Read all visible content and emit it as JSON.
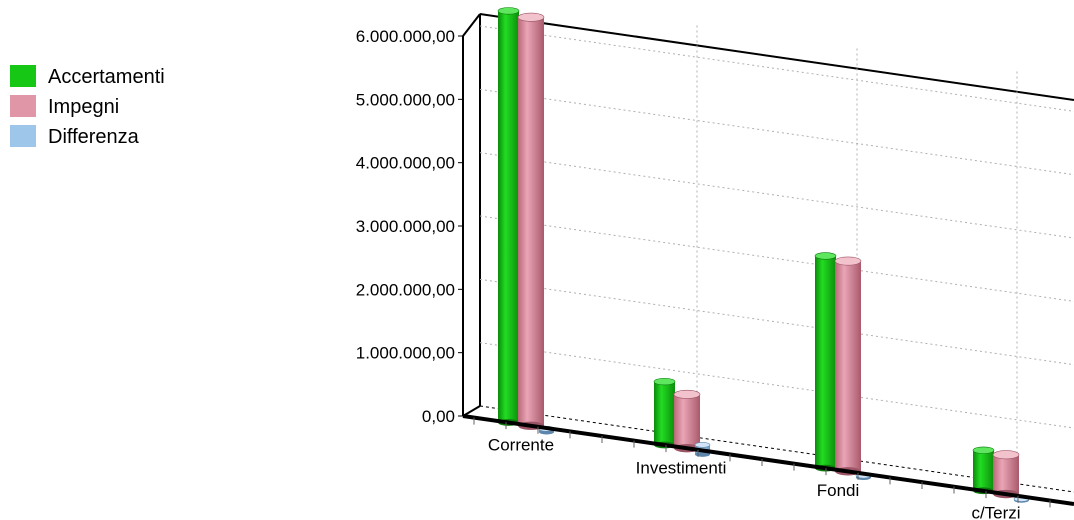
{
  "chart_data": {
    "type": "bar",
    "style": "3d-cylinder",
    "categories": [
      "Corrente",
      "Investimenti",
      "Fondi",
      "c/Terzi"
    ],
    "series": [
      {
        "name": "Accertamenti",
        "color": "#16c716",
        "values": [
          6500000,
          1000000,
          3350000,
          640000
        ]
      },
      {
        "name": "Impegni",
        "color": "#e196a8",
        "values": [
          6450000,
          850000,
          3320000,
          620000
        ]
      },
      {
        "name": "Differenza",
        "color": "#9ec6ea",
        "values": [
          50000,
          150000,
          30000,
          20000
        ]
      }
    ],
    "y_ticks": [
      "0,00",
      "1.000.000,00",
      "2.000.000,00",
      "3.000.000,00",
      "4.000.000,00",
      "5.000.000,00",
      "6.000.000,00"
    ],
    "ylim": [
      0,
      6500000
    ],
    "grid": true,
    "legend_position": "left"
  }
}
